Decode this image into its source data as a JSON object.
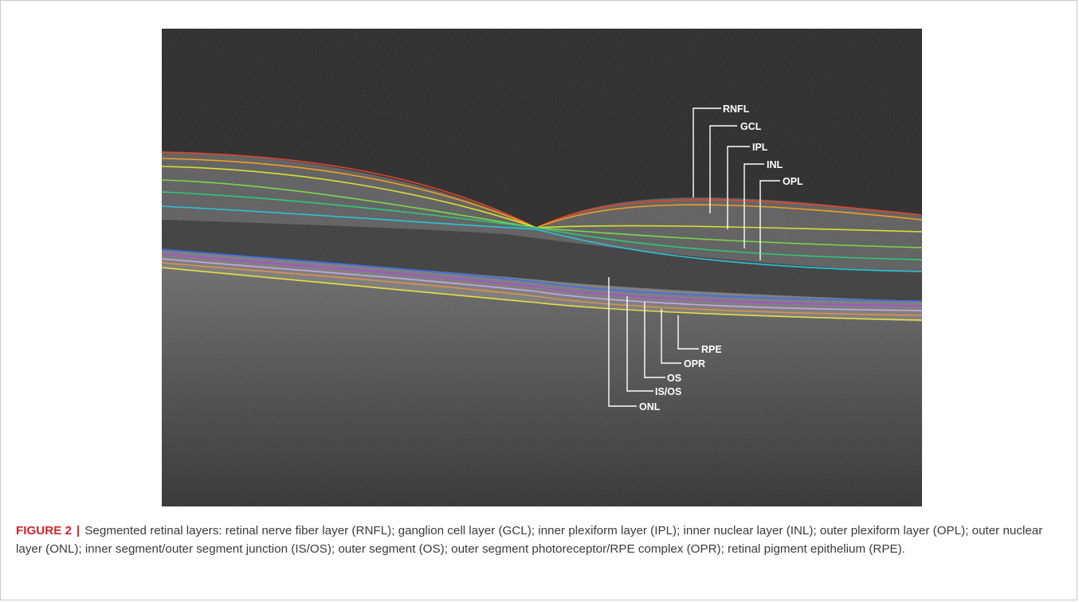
{
  "figure": {
    "label": "FIGURE 2",
    "separator": "|",
    "caption": "Segmented retinal layers: retinal nerve fiber layer (RNFL); ganglion cell layer (GCL); inner plexiform layer (IPL); inner nuclear layer (INL); outer plexiform layer (OPL); outer nuclear layer (ONL); inner segment/outer segment junction (IS/OS); outer segment (OS); outer segment photoreceptor/RPE complex (OPR); retinal pigment epithelium (RPE)."
  },
  "image": {
    "upper_labels": [
      "RNFL",
      "GCL",
      "IPL",
      "INL",
      "OPL"
    ],
    "lower_labels": [
      "RPE",
      "OPR",
      "OS",
      "IS/OS",
      "ONL"
    ],
    "boundary_colors": {
      "inner_limiting": "#e8442a",
      "rnfl_gcl": "#f0a020",
      "gcl_ipl": "#d8e030",
      "ipl_inl": "#7ad84a",
      "inl_opl": "#2ec97a",
      "opl_onl": "#29c4d8",
      "isos": "#3a6ef0",
      "os": "#b04ad8",
      "opr": "#c8a8e8",
      "rpe_top": "#e0904a",
      "rpe_bottom": "#e8e040"
    }
  }
}
